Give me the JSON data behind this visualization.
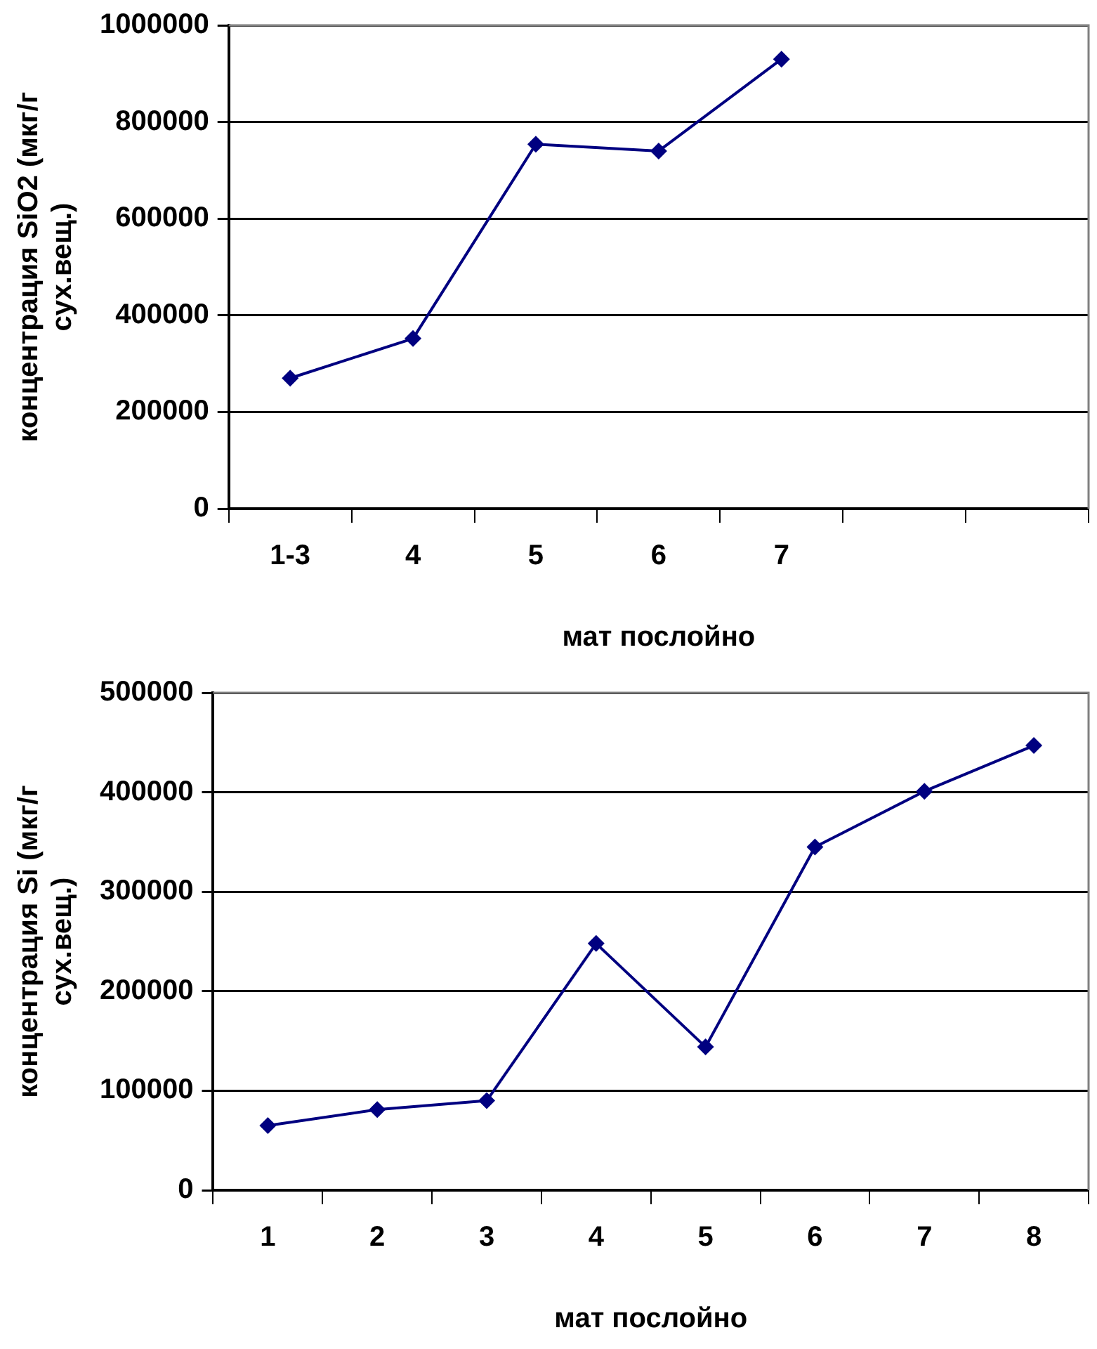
{
  "chart_data": [
    {
      "type": "line",
      "xlabel": "мат послойно",
      "ylabel": "концентрация SiO2 (мкг/г сух.вещ.)",
      "categories": [
        "1-3",
        "4",
        "5",
        "6",
        "7",
        null,
        null
      ],
      "series": [
        {
          "color": "#000080",
          "values": [
            270000,
            352000,
            754000,
            740000,
            930000,
            null,
            null
          ]
        }
      ],
      "ylim": [
        0,
        1000000
      ],
      "yticks": [
        0,
        200000,
        400000,
        600000,
        800000,
        1000000
      ],
      "grid": "y",
      "legend": false,
      "marker": "diamond",
      "line_style": "solid"
    },
    {
      "type": "line",
      "xlabel": "мат послойно",
      "ylabel": "концентрация Si (мкг/г сух.вещ.)",
      "categories": [
        "1",
        "2",
        "3",
        "4",
        "5",
        "6",
        "7",
        "8"
      ],
      "series": [
        {
          "color": "#000080",
          "values": [
            65000,
            81000,
            90000,
            248000,
            144000,
            345000,
            401000,
            447000
          ]
        }
      ],
      "ylim": [
        0,
        500000
      ],
      "yticks": [
        0,
        100000,
        200000,
        300000,
        400000,
        500000
      ],
      "grid": "y",
      "legend": false,
      "marker": "diamond",
      "line_style": "solid"
    }
  ]
}
